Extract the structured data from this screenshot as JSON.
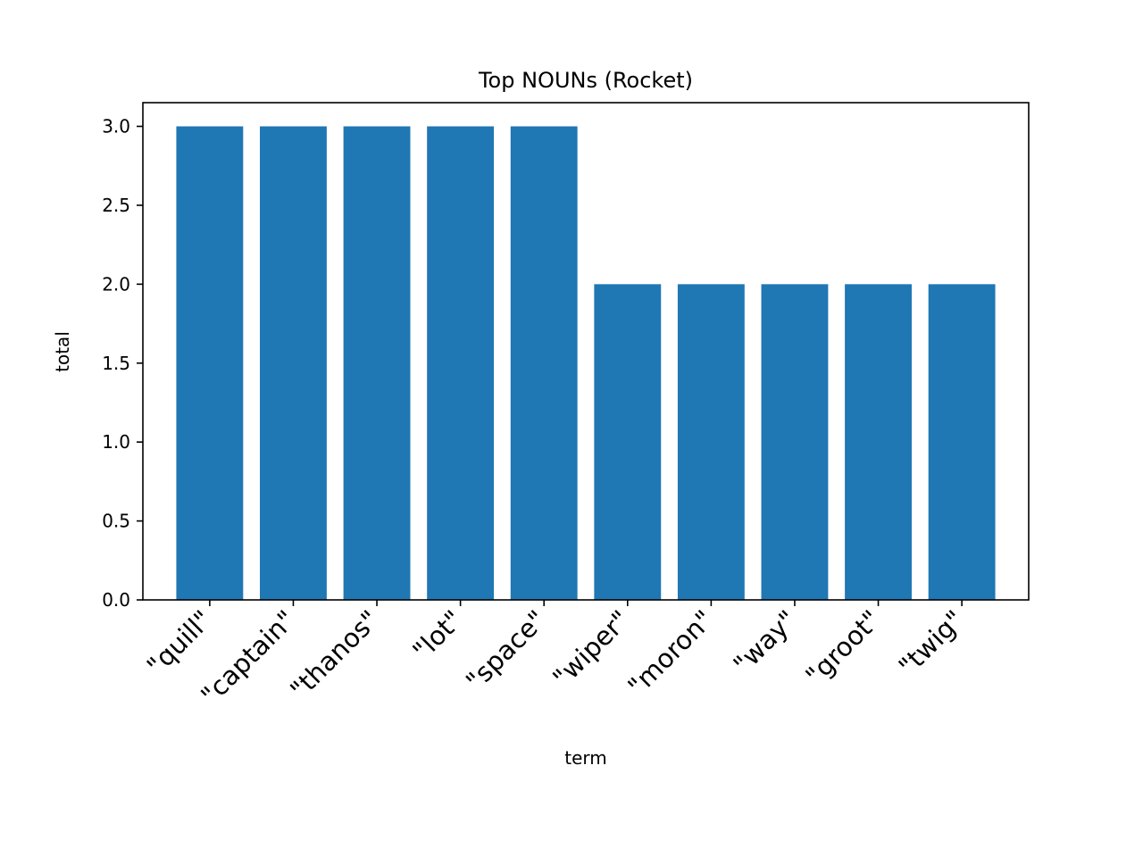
{
  "chart_data": {
    "type": "bar",
    "title": "Top NOUNs (Rocket)",
    "xlabel": "term",
    "ylabel": "total",
    "categories": [
      "\"quill\"",
      "\"captain\"",
      "\"thanos\"",
      "\"lot\"",
      "\"space\"",
      "\"wiper\"",
      "\"moron\"",
      "\"way\"",
      "\"groot\"",
      "\"twig\""
    ],
    "values": [
      3,
      3,
      3,
      3,
      3,
      2,
      2,
      2,
      2,
      2
    ],
    "ylim": [
      0,
      3.15
    ],
    "yticks": [
      "0.0",
      "0.5",
      "1.0",
      "1.5",
      "2.0",
      "2.5",
      "3.0"
    ],
    "grid": false,
    "bar_color": "#1f77b4"
  }
}
